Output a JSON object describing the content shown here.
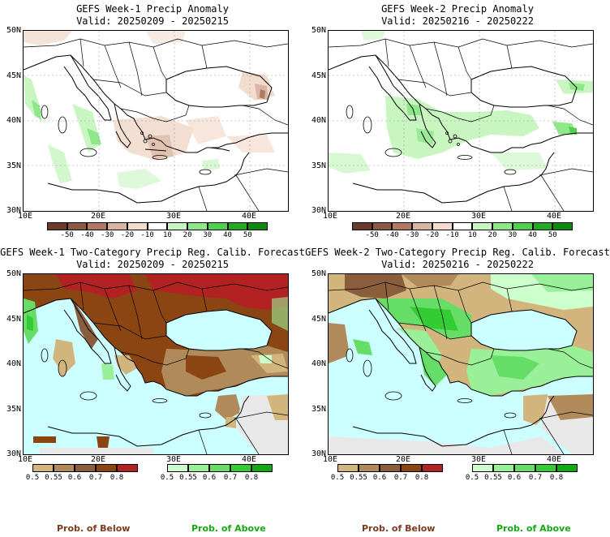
{
  "panels": [
    {
      "id": "p1",
      "title": "GEFS Week-1 Precip Anomaly",
      "valid": "Valid: 20250209 - 20250215"
    },
    {
      "id": "p2",
      "title": "GEFS Week-2 Precip Anomaly",
      "valid": "Valid: 20250216 - 20250222"
    },
    {
      "id": "p3",
      "title": "GEFS Week-1 Two-Category Precip Reg. Calib. Forecast",
      "valid": "Valid: 20250209 - 20250215"
    },
    {
      "id": "p4",
      "title": "GEFS Week-2 Two-Category Precip Reg. Calib. Forecast",
      "valid": "Valid: 20250216 - 20250222"
    }
  ],
  "axes": {
    "lat_labels": [
      "50N",
      "45N",
      "40N",
      "35N",
      "30N"
    ],
    "lon_labels": [
      "10E",
      "20E",
      "30E",
      "40E"
    ]
  },
  "anomaly_colorbar": {
    "ticks": [
      "-50",
      "-40",
      "-30",
      "-20",
      "-10",
      "10",
      "20",
      "30",
      "40",
      "50"
    ],
    "colors": [
      "#6b3a2a",
      "#8c5a40",
      "#b07a62",
      "#d9b5a2",
      "#f2dccd",
      "#ffffff",
      "#c8f5c0",
      "#8ee88a",
      "#4fd14f",
      "#22aa22",
      "#0d8a0d"
    ]
  },
  "prob_colorbar": {
    "below_ticks": [
      "0.5",
      "0.55",
      "0.6",
      "0.7",
      "0.8"
    ],
    "above_ticks": [
      "0.5",
      "0.55",
      "0.6",
      "0.7",
      "0.8"
    ],
    "below_colors": [
      "#d2b47d",
      "#b08a5a",
      "#8a5e3c",
      "#8b4513",
      "#b22222"
    ],
    "above_colors": [
      "#ccffcc",
      "#99f099",
      "#66dd66",
      "#33cc33",
      "#11aa11"
    ],
    "below_label": "Prob. of Below",
    "above_label": "Prob. of Above"
  },
  "colors": {
    "sea": "#ccffff",
    "missing": "#e8e8e8",
    "below_text": "#7a3b1e",
    "above_text": "#11aa11"
  }
}
